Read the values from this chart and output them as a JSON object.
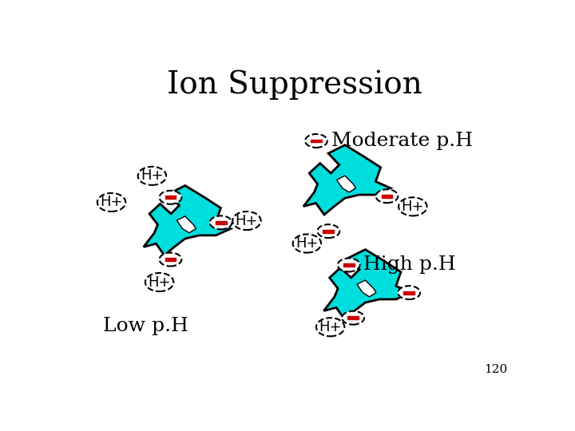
{
  "title": "Ion Suppression",
  "title_fontsize": 28,
  "bg_color": "#ffffff",
  "cyan_color": "#00DDDD",
  "cyan_edge": "#000000",
  "ellipse_color": "#ffffff",
  "ellipse_edge": "#000000",
  "minus_color": "#cc0000",
  "text_color": "#000000",
  "label_moderate": "Moderate p.H",
  "label_high": "High p.H",
  "label_low": "Low p.H",
  "label_slide": "120",
  "label_fontsize": 18,
  "hp_fontsize": 13,
  "slide_fontsize": 11,
  "lw_ellipse": 1.5,
  "lw_shape": 2.0
}
